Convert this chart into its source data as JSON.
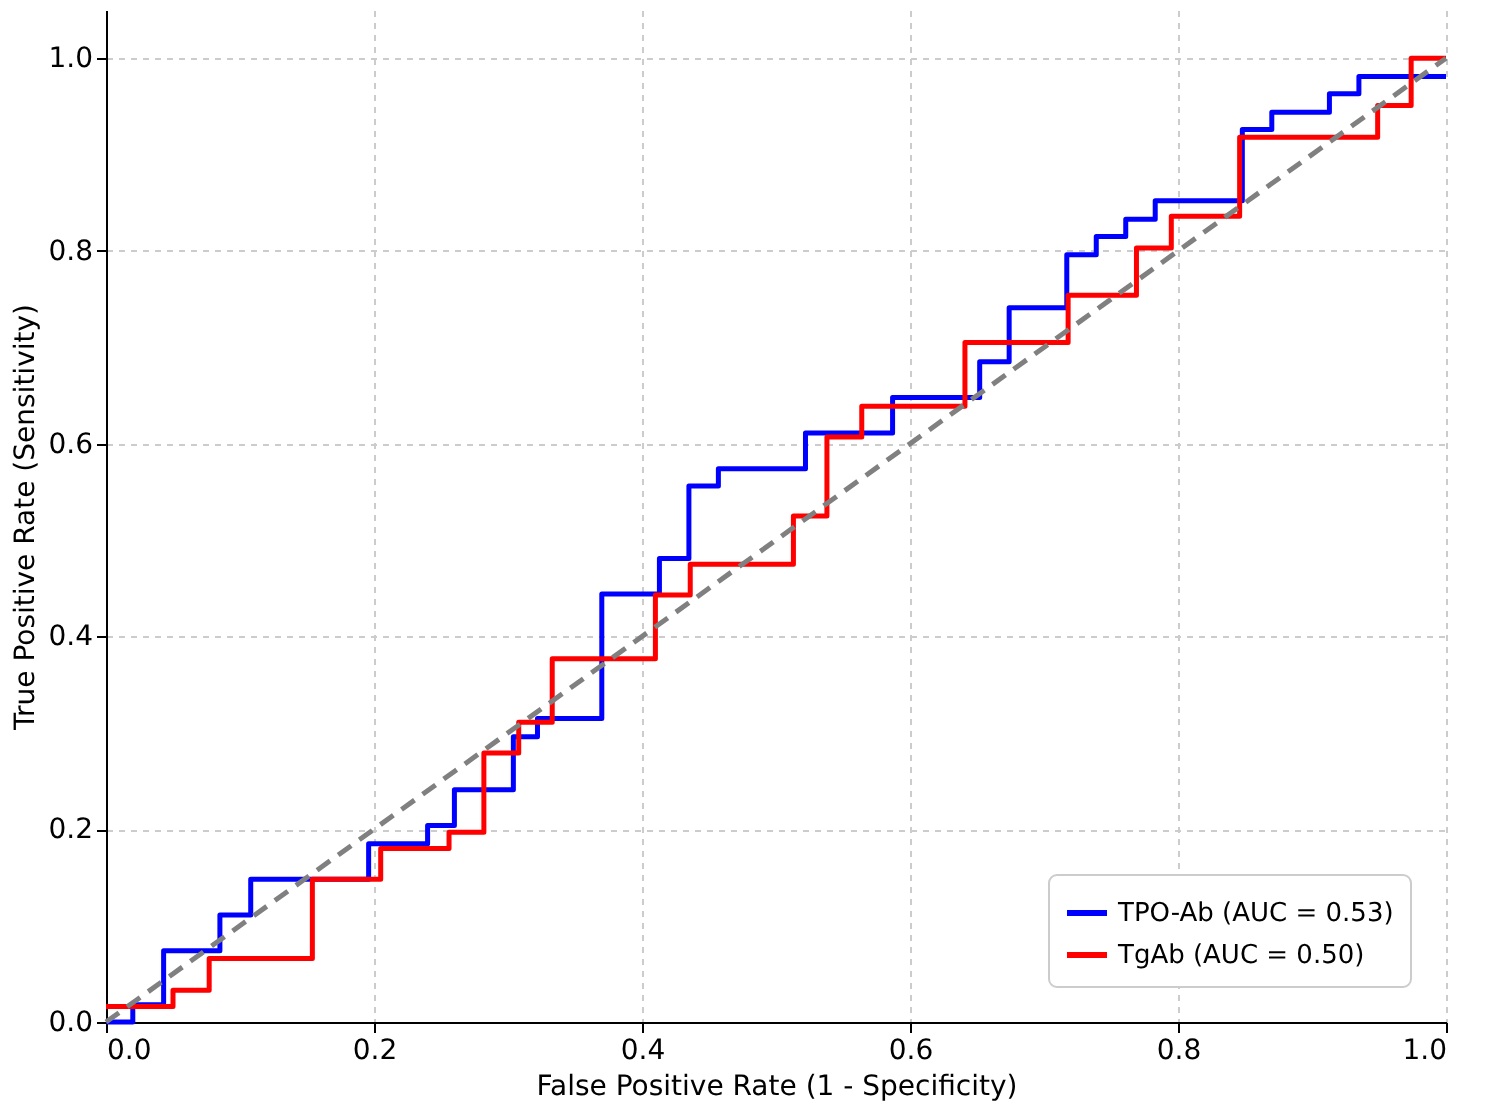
{
  "chart_data": {
    "type": "step",
    "xlabel": "False Positive Rate (1 - Specificity)",
    "ylabel": "True Positive Rate (Sensitivity)",
    "xlim": [
      0,
      1
    ],
    "ylim": [
      0,
      1.05
    ],
    "xticks": [
      {
        "value": 0,
        "label": "0.0"
      },
      0.2,
      0.4,
      0.6,
      0.8,
      {
        "value": 1,
        "label": "1.0"
      }
    ],
    "yticks": [
      {
        "value": 0,
        "label": "0.0"
      },
      0.2,
      0.4,
      0.6,
      0.8,
      {
        "value": 1,
        "label": "1.0"
      }
    ],
    "grid": true,
    "legend": "bottom right",
    "marker": "none",
    "series": [
      {
        "name": "TPO-Ab (AUC = 0.53)",
        "color": "#0000ff",
        "line_style": "solid",
        "x": [
          0,
          0.02,
          0.043,
          0.085,
          0.108,
          0.196,
          0.24,
          0.26,
          0.304,
          0.322,
          0.37,
          0.413,
          0.435,
          0.457,
          0.522,
          0.587,
          0.652,
          0.674,
          0.717,
          0.739,
          0.761,
          0.783,
          0.848,
          0.87,
          0.913,
          0.935,
          1.0
        ],
        "values": [
          0,
          0.018,
          0.074,
          0.111,
          0.148,
          0.185,
          0.204,
          0.241,
          0.296,
          0.315,
          0.444,
          0.481,
          0.556,
          0.574,
          0.611,
          0.648,
          0.685,
          0.741,
          0.796,
          0.815,
          0.833,
          0.852,
          0.926,
          0.944,
          0.963,
          0.981,
          0.981
        ]
      },
      {
        "name": "TgAb (AUC = 0.50)",
        "color": "#ff0000",
        "line_style": "solid",
        "x": [
          0,
          0.05,
          0.077,
          0.154,
          0.205,
          0.256,
          0.282,
          0.308,
          0.333,
          0.41,
          0.436,
          0.513,
          0.538,
          0.564,
          0.641,
          0.718,
          0.769,
          0.795,
          0.846,
          0.949,
          0.974,
          1.0
        ],
        "values": [
          0.016,
          0.033,
          0.066,
          0.148,
          0.18,
          0.197,
          0.279,
          0.311,
          0.377,
          0.443,
          0.475,
          0.525,
          0.607,
          0.639,
          0.705,
          0.754,
          0.803,
          0.836,
          0.918,
          0.951,
          1.0,
          1.0
        ]
      },
      {
        "color": "#808080",
        "type": "line",
        "line_style": "dashed",
        "x": [
          0,
          1
        ],
        "values": [
          0,
          1
        ]
      }
    ]
  }
}
